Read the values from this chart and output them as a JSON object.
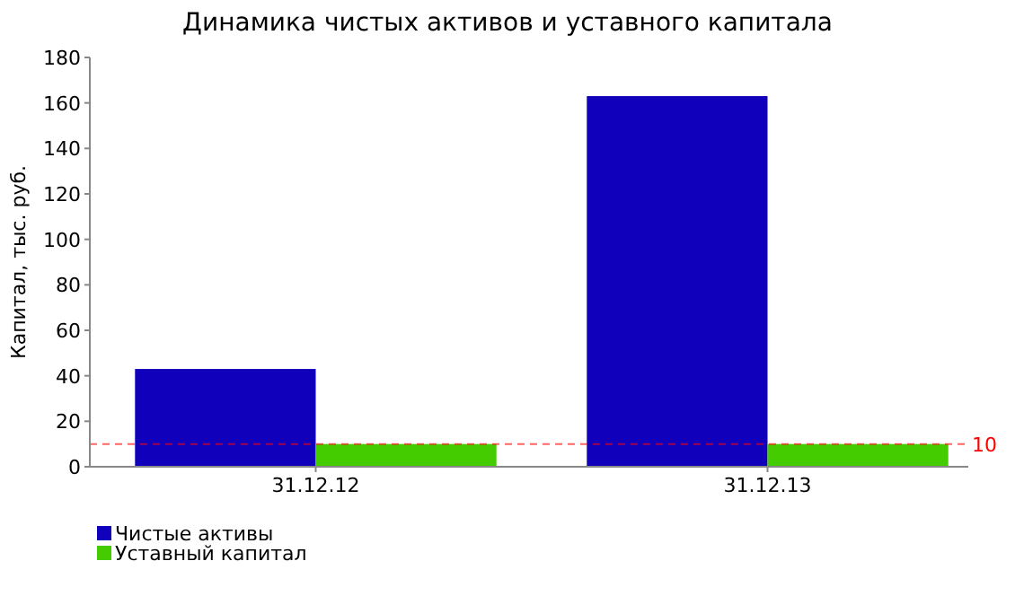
{
  "chart_data": {
    "type": "bar",
    "title": "Динамика чистых активов и уставного капитала",
    "ylabel": "Капитал, тыс. руб.",
    "categories": [
      "31.12.12",
      "31.12.13"
    ],
    "series": [
      {
        "name": "Чистые активы",
        "color": "#1100bb",
        "values": [
          43,
          163
        ]
      },
      {
        "name": "Уставный капитал",
        "color": "#44cc00",
        "values": [
          10,
          10
        ]
      }
    ],
    "ylim": [
      0,
      180
    ],
    "yticks": [
      0,
      20,
      40,
      60,
      80,
      100,
      120,
      140,
      160,
      180
    ],
    "ref_lines": [
      {
        "axis": "y",
        "value": 10,
        "label": "10",
        "color": "#ff0000",
        "line_style": "dashed"
      }
    ],
    "grid": false,
    "legend": "bottom left"
  }
}
